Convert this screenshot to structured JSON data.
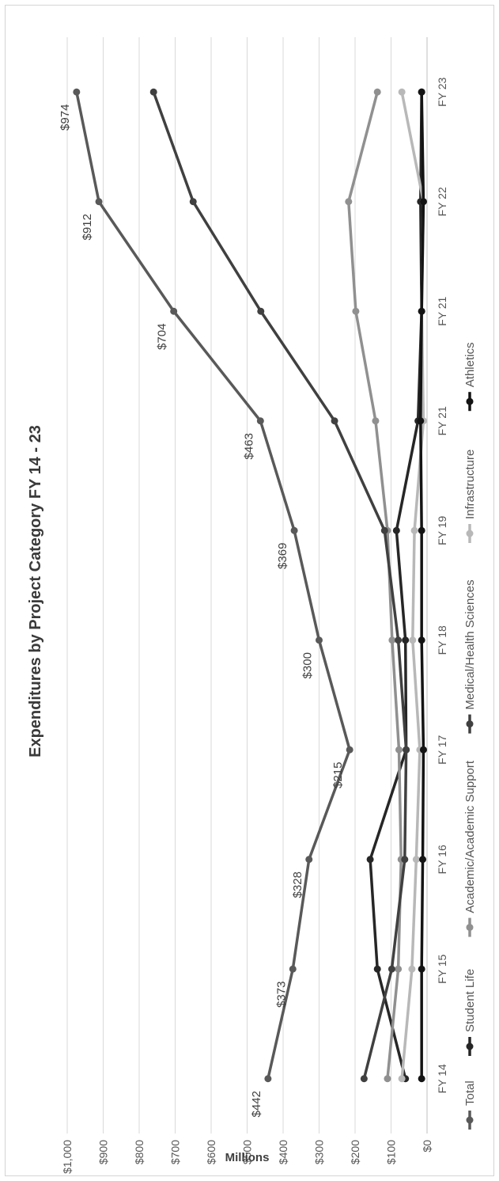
{
  "chart_data": {
    "type": "line",
    "title": "Expenditures by Project Category FY 14 - 23",
    "ylabel": "Millions",
    "xlabel": "",
    "ylim": [
      0,
      1000
    ],
    "y_ticks": [
      "$0",
      "$100",
      "$200",
      "$300",
      "$400",
      "$500",
      "$600",
      "$700",
      "$800",
      "$900",
      "$1,000"
    ],
    "categories": [
      "FY 14",
      "FY 15",
      "FY 16",
      "FY 17",
      "FY 18",
      "FY 19",
      "FY 21",
      "FY 21",
      "FY 22",
      "FY 23"
    ],
    "grid": true,
    "legend_position": "bottom",
    "series": [
      {
        "name": "Total",
        "color": "#595959",
        "values": [
          442,
          373,
          328,
          215,
          300,
          369,
          463,
          704,
          912,
          974
        ],
        "labels": [
          "$442",
          "$373",
          "$328",
          "$215",
          "$300",
          "$369",
          "$463",
          "$704",
          "$912",
          "$974"
        ]
      },
      {
        "name": "Student Life",
        "color": "#262626",
        "values": [
          60,
          138,
          158,
          58,
          60,
          85,
          25,
          15,
          18,
          15
        ]
      },
      {
        "name": "Academic/Academic Support",
        "color": "#909090",
        "values": [
          110,
          80,
          72,
          78,
          97,
          110,
          143,
          198,
          218,
          138
        ]
      },
      {
        "name": "Medical/Health Sciences",
        "color": "#404040",
        "values": [
          175,
          98,
          62,
          58,
          80,
          118,
          257,
          462,
          650,
          760
        ]
      },
      {
        "name": "Infrastructure",
        "color": "#b8b8b8",
        "values": [
          70,
          42,
          30,
          20,
          40,
          35,
          10,
          15,
          10,
          70
        ]
      },
      {
        "name": "Athletics",
        "color": "#141414",
        "values": [
          15,
          15,
          12,
          10,
          15,
          15,
          18,
          15,
          10,
          15
        ]
      }
    ]
  }
}
